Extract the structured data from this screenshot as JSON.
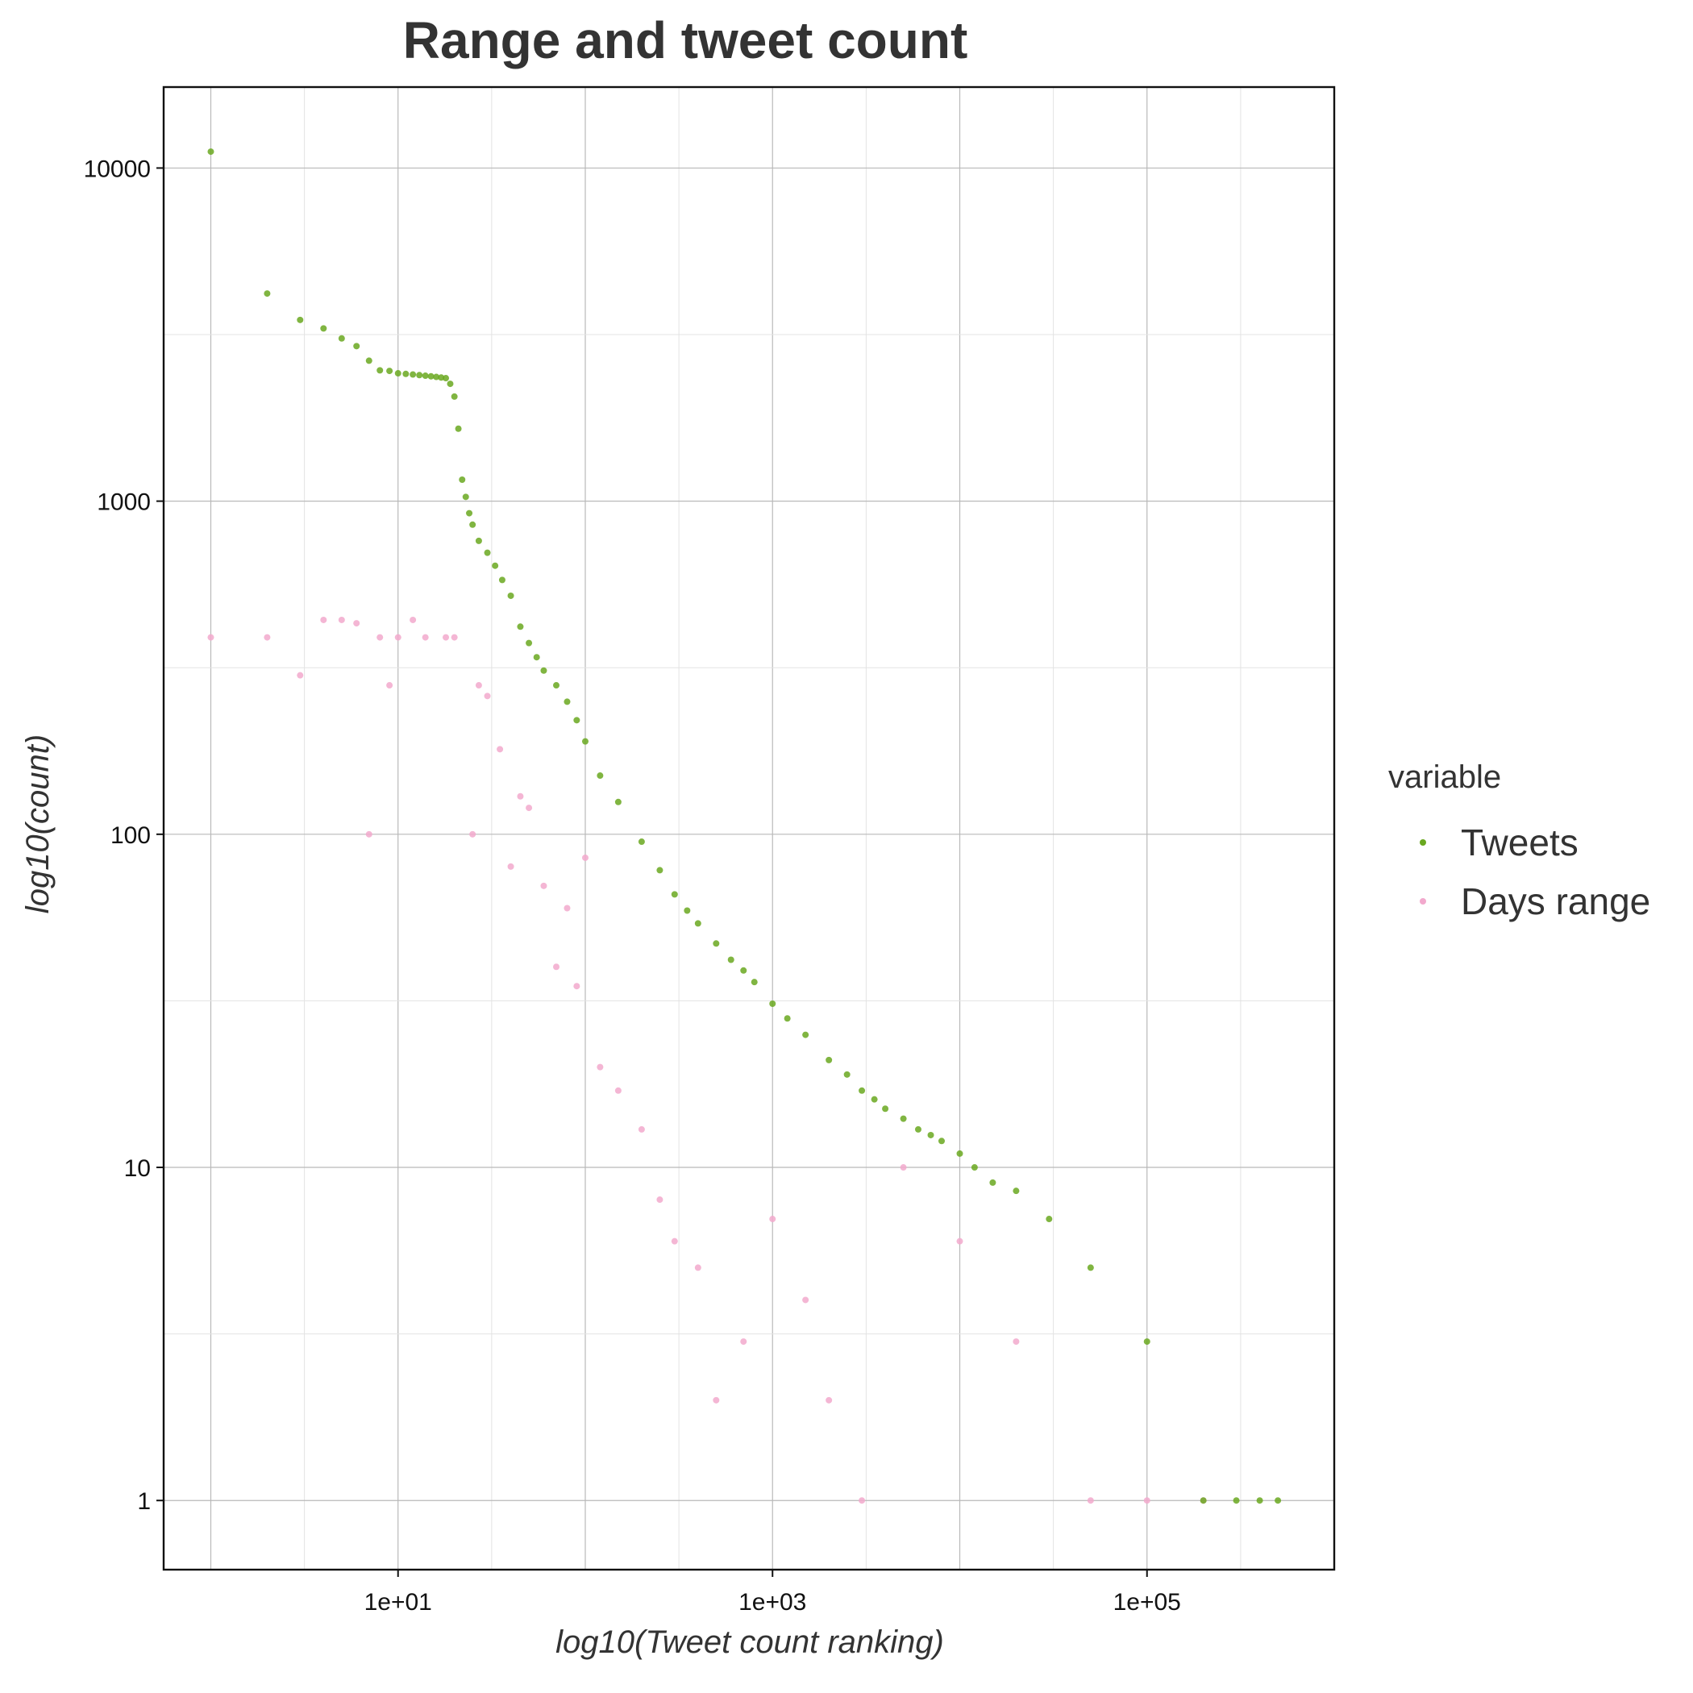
{
  "chart_data": {
    "type": "scatter",
    "title": "Range and tweet count",
    "xlabel": "log10(Tweet count ranking)",
    "ylabel": "log10(count)",
    "x_scale": "log10",
    "y_scale": "log10",
    "xlim": [
      0.56,
      1000000
    ],
    "ylim": [
      0.62,
      17500
    ],
    "x_ticks": [
      10,
      1000,
      100000
    ],
    "x_tick_labels": [
      "1e+01",
      "1e+03",
      "1e+05"
    ],
    "y_ticks": [
      1,
      10,
      100,
      1000,
      10000
    ],
    "y_tick_labels": [
      "1",
      "10",
      "100",
      "1000",
      "10000"
    ],
    "grid": true,
    "legend": {
      "title": "variable",
      "position": "right"
    },
    "series": [
      {
        "name": "Tweets",
        "color": "#6aa820",
        "x": [
          1,
          2,
          3,
          4,
          5,
          6,
          7,
          8,
          9,
          10,
          11,
          12,
          13,
          14,
          15,
          16,
          17,
          18,
          19,
          20,
          21,
          22,
          23,
          24,
          25,
          27,
          30,
          33,
          36,
          40,
          45,
          50,
          55,
          60,
          70,
          80,
          90,
          100,
          120,
          150,
          200,
          250,
          300,
          350,
          400,
          500,
          600,
          700,
          800,
          1000,
          1200,
          1500,
          2000,
          2500,
          3000,
          3500,
          4000,
          5000,
          6000,
          7000,
          8000,
          10000,
          12000,
          15000,
          20000,
          30000,
          50000,
          100000,
          200000,
          300000,
          400000,
          500000
        ],
        "y": [
          11200,
          4200,
          3500,
          3300,
          3080,
          2920,
          2640,
          2470,
          2460,
          2420,
          2410,
          2400,
          2390,
          2380,
          2370,
          2360,
          2350,
          2340,
          2250,
          2060,
          1650,
          1160,
          1030,
          920,
          850,
          760,
          700,
          640,
          580,
          520,
          420,
          375,
          340,
          310,
          280,
          250,
          220,
          190,
          150,
          125,
          95,
          78,
          66,
          59,
          54,
          47,
          42,
          39,
          36,
          31,
          28,
          25,
          21,
          19,
          17,
          16,
          15,
          14,
          13,
          12.5,
          12,
          11,
          10,
          9,
          8.5,
          7,
          5,
          3,
          1,
          1,
          1,
          1
        ]
      },
      {
        "name": "Days range",
        "color": "#f2a9cd",
        "x": [
          1,
          2,
          3,
          4,
          5,
          6,
          7,
          8,
          9,
          10,
          12,
          14,
          18,
          20,
          25,
          27,
          30,
          35,
          40,
          45,
          50,
          60,
          70,
          80,
          90,
          100,
          120,
          150,
          200,
          250,
          300,
          400,
          500,
          700,
          1000,
          1500,
          2000,
          3000,
          5000,
          10000,
          20000,
          50000,
          100000,
          200000
        ],
        "y": [
          390,
          390,
          300,
          440,
          440,
          430,
          100,
          390,
          280,
          390,
          440,
          390,
          390,
          390,
          100,
          280,
          260,
          180,
          80,
          130,
          120,
          70,
          40,
          60,
          35,
          85,
          20,
          17,
          13,
          8,
          6,
          5,
          2,
          3,
          7,
          4,
          2,
          1,
          10,
          6,
          3,
          1,
          1,
          1
        ]
      }
    ]
  }
}
